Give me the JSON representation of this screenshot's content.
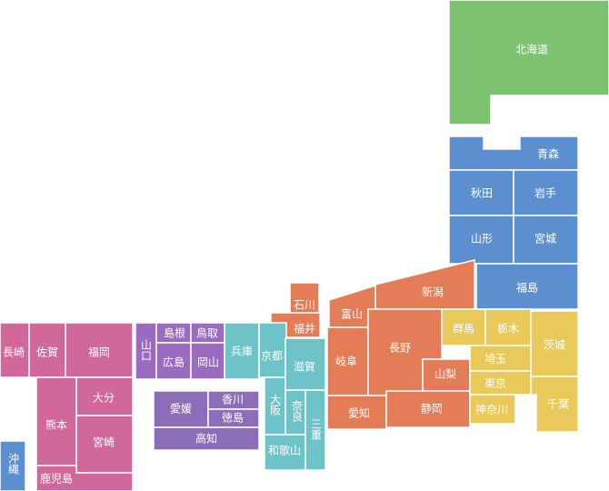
{
  "prefectures": [
    {
      "name": "北海道",
      "color": "#7cc26f"
    },
    {
      "name": "青森",
      "color": "#5b8fd0"
    },
    {
      "name": "秋田",
      "color": "#5b8fd0"
    },
    {
      "name": "岩手",
      "color": "#5b8fd0"
    },
    {
      "name": "山形",
      "color": "#5b8fd0"
    },
    {
      "name": "宮城",
      "color": "#5b8fd0"
    },
    {
      "name": "福島",
      "color": "#5b8fd0"
    },
    {
      "name": "石川",
      "color": "#e37c57"
    },
    {
      "name": "福井",
      "color": "#e37c57"
    },
    {
      "name": "富山",
      "color": "#e37c57"
    },
    {
      "name": "新潟",
      "color": "#e37c57"
    },
    {
      "name": "岐阜",
      "color": "#e37c57"
    },
    {
      "name": "長野",
      "color": "#e37c57"
    },
    {
      "name": "山梨",
      "color": "#e37c57"
    },
    {
      "name": "愛知",
      "color": "#e37c57"
    },
    {
      "name": "静岡",
      "color": "#e37c57"
    },
    {
      "name": "群馬",
      "color": "#e8c95a"
    },
    {
      "name": "栃木",
      "color": "#e8c95a"
    },
    {
      "name": "茨城",
      "color": "#e8c95a"
    },
    {
      "name": "埼玉",
      "color": "#e8c95a"
    },
    {
      "name": "東京",
      "color": "#e8c95a"
    },
    {
      "name": "神奈川",
      "color": "#e8c95a"
    },
    {
      "name": "千葉",
      "color": "#e8c95a"
    },
    {
      "name": "兵庫",
      "color": "#6ec3c9"
    },
    {
      "name": "京都",
      "color": "#6ec3c9"
    },
    {
      "name": "大阪",
      "color": "#6ec3c9"
    },
    {
      "name": "滋賀",
      "color": "#6ec3c9"
    },
    {
      "name": "奈良",
      "color": "#6ec3c9"
    },
    {
      "name": "三重",
      "color": "#6ec3c9"
    },
    {
      "name": "和歌山",
      "color": "#6ec3c9"
    },
    {
      "name": "山口",
      "color": "#9b6bbf"
    },
    {
      "name": "島根",
      "color": "#9b6bbf"
    },
    {
      "name": "鳥取",
      "color": "#9b6bbf"
    },
    {
      "name": "広島",
      "color": "#9b6bbf"
    },
    {
      "name": "岡山",
      "color": "#9b6bbf"
    },
    {
      "name": "愛媛",
      "color": "#8c6dba"
    },
    {
      "name": "香川",
      "color": "#8c6dba"
    },
    {
      "name": "徳島",
      "color": "#8c6dba"
    },
    {
      "name": "高知",
      "color": "#8c6dba"
    },
    {
      "name": "長崎",
      "color": "#d0689a"
    },
    {
      "name": "佐賀",
      "color": "#d0689a"
    },
    {
      "name": "福岡",
      "color": "#d0689a"
    },
    {
      "name": "大分",
      "color": "#d0689a"
    },
    {
      "name": "熊本",
      "color": "#d0689a"
    },
    {
      "name": "宮崎",
      "color": "#d0689a"
    },
    {
      "name": "鹿児島",
      "color": "#d0689a"
    },
    {
      "name": "沖縄",
      "color": "#5b8fd0"
    }
  ]
}
